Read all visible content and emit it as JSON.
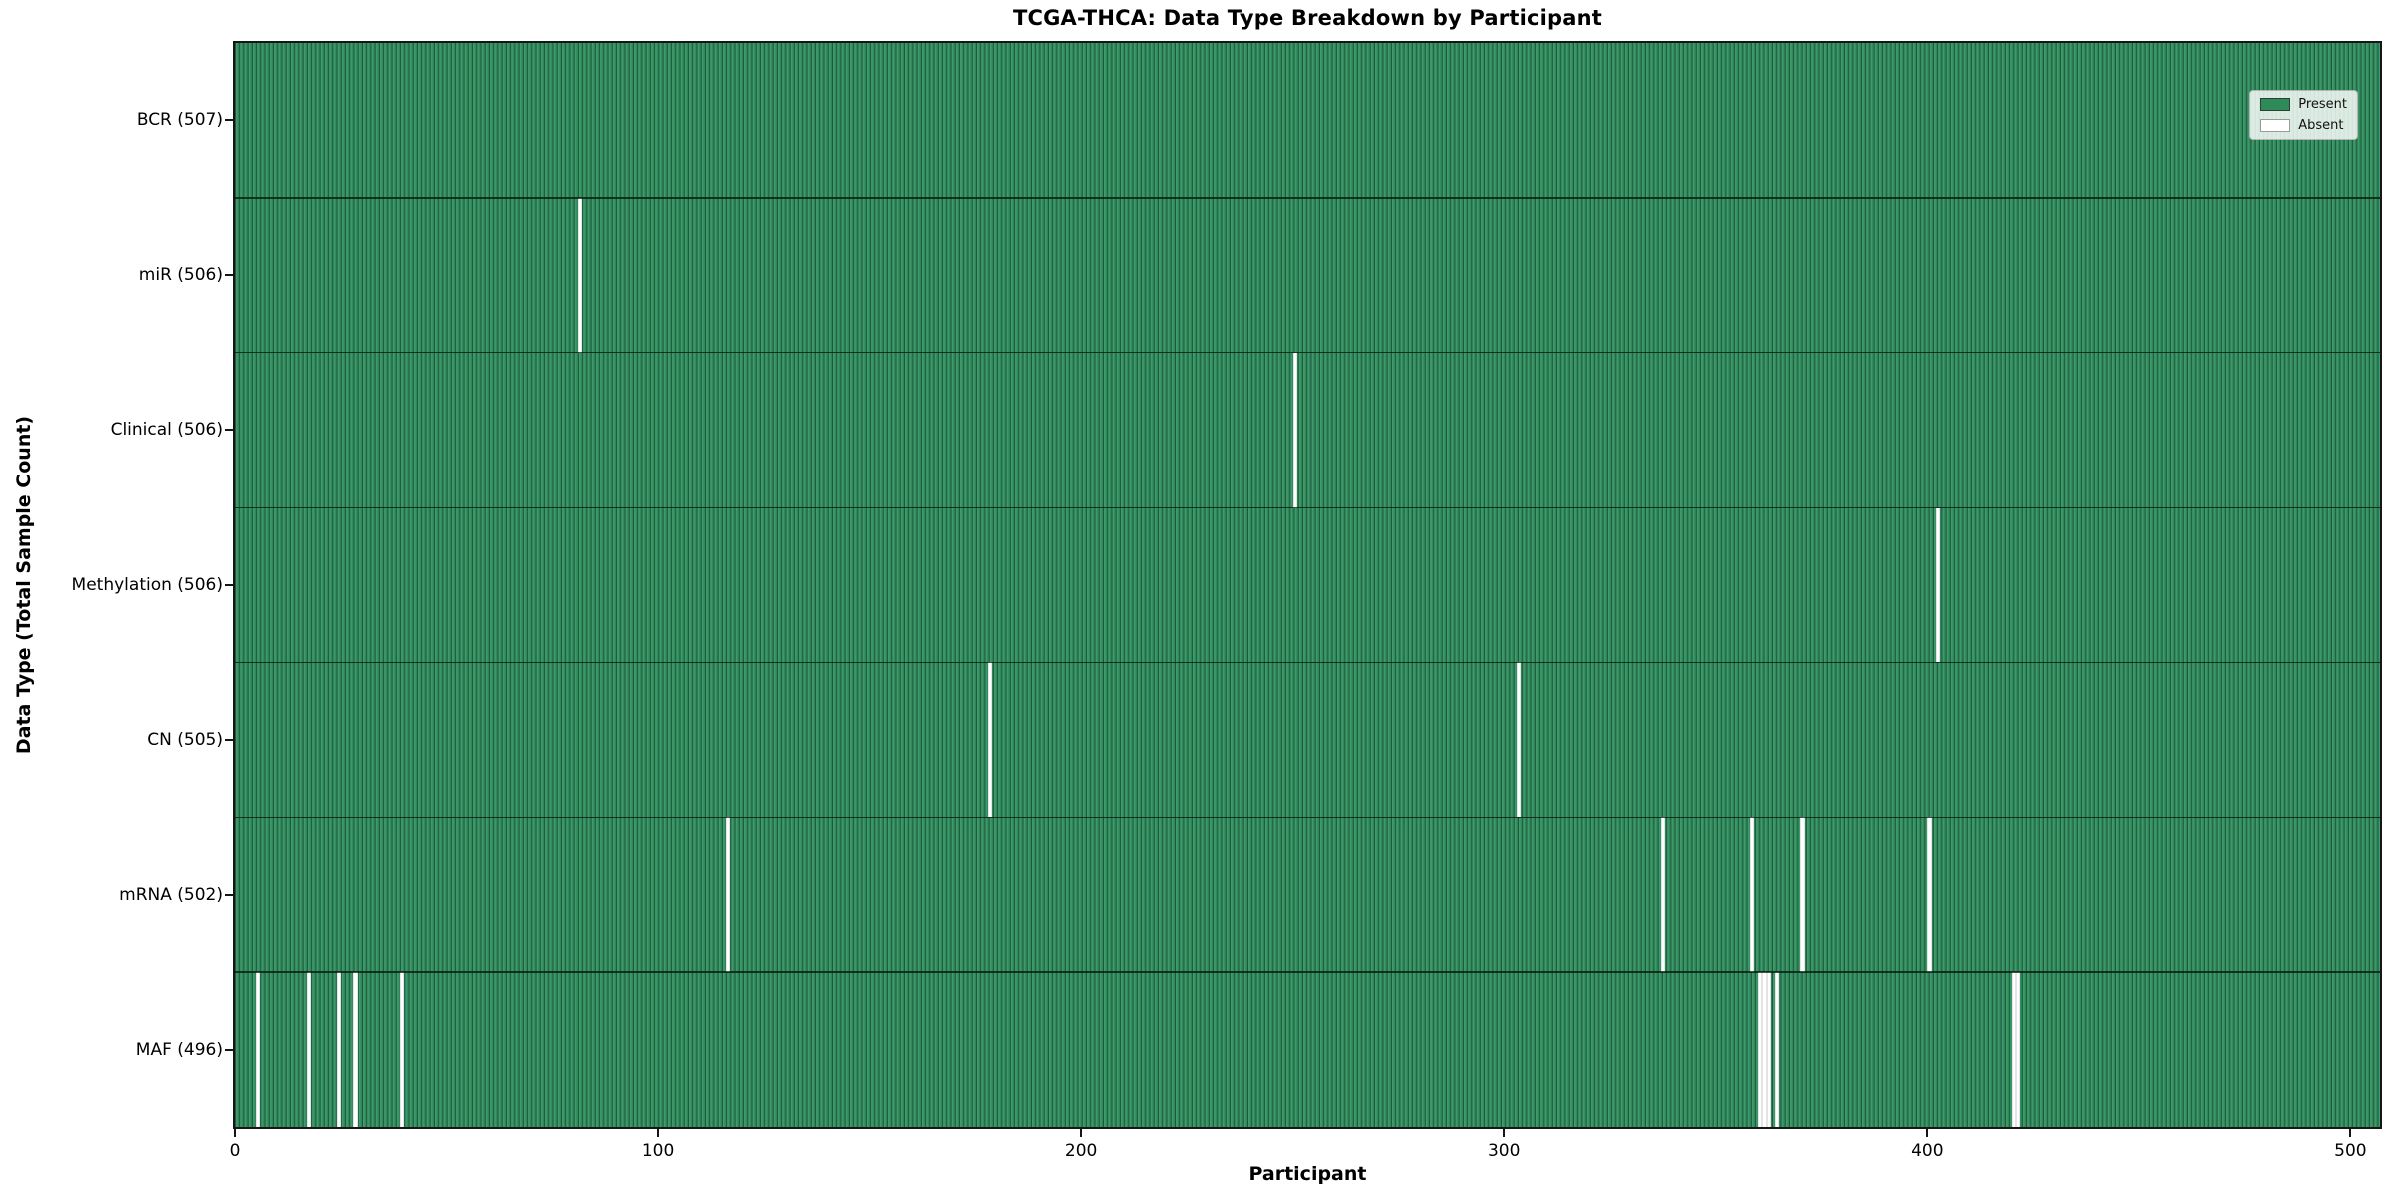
{
  "title": "TCGA-THCA: Data Type Breakdown by Participant",
  "xlabel": "Participant",
  "ylabel": "Data Type (Total Sample Count)",
  "legend": {
    "present_label": "Present",
    "absent_label": "Absent"
  },
  "colors": {
    "present": "#2e8b57",
    "absent": "#ffffff",
    "bar_edge": "#0a2616",
    "spine": "#161616"
  },
  "chart_data": {
    "type": "heatmap",
    "title": "TCGA-THCA: Data Type Breakdown by Participant",
    "xlabel": "Participant",
    "ylabel": "Data Type (Total Sample Count)",
    "legend": [
      "Present",
      "Absent"
    ],
    "legend_position": "upper right",
    "grid": false,
    "n_participants": 507,
    "xlim": [
      0,
      507
    ],
    "x_ticks": [
      0,
      100,
      200,
      300,
      400,
      500
    ],
    "rows": [
      {
        "label": "BCR (507)",
        "data_type": "BCR",
        "total_sample_count": 507,
        "absent_participants": []
      },
      {
        "label": "miR (506)",
        "data_type": "miR",
        "total_sample_count": 506,
        "absent_participants": [
          81
        ]
      },
      {
        "label": "Clinical (506)",
        "data_type": "Clinical",
        "total_sample_count": 506,
        "absent_participants": [
          250
        ]
      },
      {
        "label": "Methylation (506)",
        "data_type": "Methylation",
        "total_sample_count": 506,
        "absent_participants": [
          402
        ]
      },
      {
        "label": "CN (505)",
        "data_type": "CN",
        "total_sample_count": 505,
        "absent_participants": [
          178,
          303
        ]
      },
      {
        "label": "mRNA (502)",
        "data_type": "mRNA",
        "total_sample_count": 502,
        "absent_participants": [
          116,
          337,
          358,
          370,
          400
        ]
      },
      {
        "label": "MAF (496)",
        "data_type": "MAF",
        "total_sample_count": 496,
        "absent_participants": [
          5,
          17,
          24,
          28,
          39,
          360,
          361,
          362,
          364,
          420,
          421
        ]
      }
    ]
  }
}
